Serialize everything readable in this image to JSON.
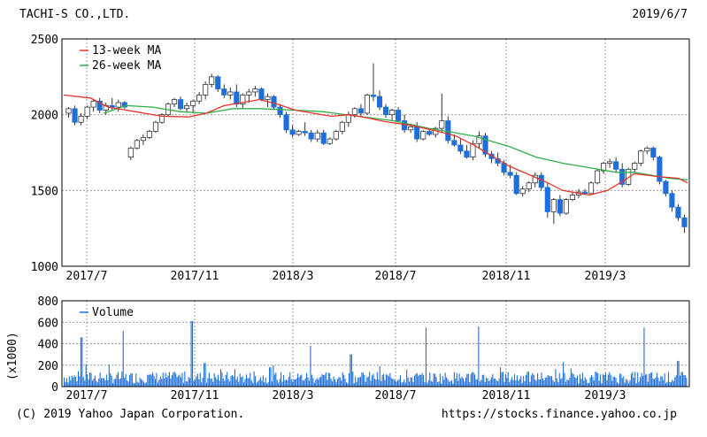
{
  "header": {
    "company": "TACHI-S CO.,LTD.",
    "date": "2019/6/7"
  },
  "footer": {
    "copyright": "(C) 2019 Yahoo Japan Corporation.",
    "url": "https://stocks.finance.yahoo.co.jp"
  },
  "colors": {
    "up": "#ffffff",
    "down": "#1f6fd8",
    "ma13": "#e8332b",
    "ma26": "#2fae4a",
    "volume": "#1f6fd8",
    "grid": "#999999"
  },
  "chart_data": [
    {
      "type": "candlestick",
      "title": "",
      "ylim": [
        1000,
        2500
      ],
      "yticks": [
        1000,
        1500,
        2000,
        2500
      ],
      "xticks": [
        "2017/7",
        "2017/11",
        "2018/3",
        "2018/7",
        "2018/11",
        "2019/3"
      ],
      "legend": [
        "13-week MA",
        "26-week MA"
      ],
      "legend_position": "top-left",
      "grid": true,
      "x_start": "2017-06-05",
      "x_end": "2019-06-07",
      "ma13": [
        [
          0,
          2130
        ],
        [
          6,
          2110
        ],
        [
          10,
          2050
        ],
        [
          16,
          2020
        ],
        [
          22,
          1990
        ],
        [
          28,
          1985
        ],
        [
          32,
          2010
        ],
        [
          36,
          2060
        ],
        [
          40,
          2080
        ],
        [
          44,
          2100
        ],
        [
          48,
          2070
        ],
        [
          52,
          2030
        ],
        [
          56,
          2010
        ],
        [
          60,
          1990
        ],
        [
          64,
          2000
        ],
        [
          68,
          1980
        ],
        [
          72,
          1955
        ],
        [
          78,
          1930
        ],
        [
          84,
          1890
        ],
        [
          88,
          1860
        ],
        [
          92,
          1800
        ],
        [
          96,
          1730
        ],
        [
          100,
          1660
        ],
        [
          104,
          1610
        ],
        [
          108,
          1560
        ],
        [
          112,
          1500
        ],
        [
          116,
          1480
        ],
        [
          118,
          1470
        ],
        [
          122,
          1500
        ],
        [
          126,
          1570
        ],
        [
          128,
          1610
        ],
        [
          134,
          1590
        ],
        [
          138,
          1580
        ],
        [
          140,
          1550
        ]
      ],
      "ma26": [
        [
          9,
          2010
        ],
        [
          14,
          2060
        ],
        [
          20,
          2050
        ],
        [
          26,
          2020
        ],
        [
          32,
          2010
        ],
        [
          38,
          2040
        ],
        [
          44,
          2040
        ],
        [
          52,
          2030
        ],
        [
          58,
          2020
        ],
        [
          66,
          1990
        ],
        [
          74,
          1960
        ],
        [
          82,
          1910
        ],
        [
          86,
          1890
        ],
        [
          92,
          1860
        ],
        [
          100,
          1790
        ],
        [
          106,
          1720
        ],
        [
          112,
          1680
        ],
        [
          118,
          1650
        ],
        [
          124,
          1620
        ],
        [
          128,
          1620
        ],
        [
          132,
          1600
        ],
        [
          136,
          1580
        ],
        [
          140,
          1570
        ]
      ],
      "candles": [
        [
          2010,
          2050,
          1980,
          2040
        ],
        [
          2040,
          2060,
          1930,
          1950
        ],
        [
          1950,
          2010,
          1930,
          1990
        ],
        [
          1990,
          2060,
          1970,
          2050
        ],
        [
          2050,
          2100,
          2020,
          2090
        ],
        [
          2090,
          2110,
          2010,
          2030
        ],
        [
          2030,
          2080,
          2000,
          2060
        ],
        [
          2060,
          2110,
          2030,
          2050
        ],
        [
          2050,
          2100,
          2020,
          2080
        ],
        [
          2080,
          2090,
          2040,
          2050
        ],
        [
          1720,
          1790,
          1700,
          1780
        ],
        [
          1780,
          1840,
          1770,
          1830
        ],
        [
          1830,
          1870,
          1800,
          1850
        ],
        [
          1850,
          1900,
          1840,
          1890
        ],
        [
          1890,
          1960,
          1880,
          1950
        ],
        [
          1950,
          2010,
          1940,
          2000
        ],
        [
          2000,
          2080,
          1990,
          2070
        ],
        [
          2070,
          2110,
          2050,
          2100
        ],
        [
          2100,
          2120,
          2030,
          2040
        ],
        [
          2040,
          2080,
          2020,
          2060
        ],
        [
          2060,
          2100,
          2010,
          2090
        ],
        [
          2090,
          2150,
          2070,
          2130
        ],
        [
          2130,
          2220,
          2100,
          2200
        ],
        [
          2200,
          2270,
          2180,
          2250
        ],
        [
          2250,
          2260,
          2150,
          2170
        ],
        [
          2170,
          2200,
          2110,
          2130
        ],
        [
          2130,
          2180,
          2100,
          2150
        ],
        [
          2150,
          2200,
          2050,
          2070
        ],
        [
          2070,
          2140,
          2040,
          2130
        ],
        [
          2130,
          2170,
          2080,
          2150
        ],
        [
          2150,
          2190,
          2120,
          2170
        ],
        [
          2170,
          2180,
          2090,
          2100
        ],
        [
          2100,
          2140,
          2050,
          2120
        ],
        [
          2120,
          2130,
          2030,
          2050
        ],
        [
          2050,
          2070,
          1980,
          2000
        ],
        [
          2000,
          2020,
          1880,
          1900
        ],
        [
          1900,
          1930,
          1850,
          1870
        ],
        [
          1870,
          1900,
          1860,
          1890
        ],
        [
          1890,
          1950,
          1860,
          1880
        ],
        [
          1880,
          1900,
          1820,
          1840
        ],
        [
          1840,
          1900,
          1820,
          1880
        ],
        [
          1880,
          1900,
          1800,
          1810
        ],
        [
          1810,
          1850,
          1800,
          1840
        ],
        [
          1840,
          1900,
          1830,
          1890
        ],
        [
          1890,
          1960,
          1870,
          1950
        ],
        [
          1950,
          2020,
          1920,
          2000
        ],
        [
          2000,
          2050,
          1980,
          2040
        ],
        [
          2040,
          2070,
          1990,
          2010
        ],
        [
          2010,
          2140,
          2000,
          2130
        ],
        [
          2130,
          2340,
          2090,
          2120
        ],
        [
          2120,
          2160,
          2030,
          2050
        ],
        [
          2050,
          2070,
          1980,
          2000
        ],
        [
          2000,
          2040,
          1960,
          2030
        ],
        [
          2030,
          2050,
          1950,
          1960
        ],
        [
          1960,
          2000,
          1880,
          1900
        ],
        [
          1900,
          1940,
          1880,
          1920
        ],
        [
          1920,
          1950,
          1820,
          1840
        ],
        [
          1840,
          1900,
          1830,
          1890
        ],
        [
          1890,
          1910,
          1860,
          1870
        ],
        [
          1870,
          1920,
          1850,
          1910
        ],
        [
          1910,
          2140,
          1880,
          1960
        ],
        [
          1960,
          1990,
          1810,
          1830
        ],
        [
          1830,
          1870,
          1790,
          1800
        ],
        [
          1800,
          1840,
          1740,
          1760
        ],
        [
          1760,
          1800,
          1710,
          1720
        ],
        [
          1720,
          1830,
          1700,
          1810
        ],
        [
          1810,
          1890,
          1780,
          1860
        ],
        [
          1860,
          1880,
          1720,
          1740
        ],
        [
          1740,
          1760,
          1680,
          1710
        ],
        [
          1710,
          1750,
          1660,
          1680
        ],
        [
          1680,
          1700,
          1600,
          1620
        ],
        [
          1620,
          1670,
          1580,
          1600
        ],
        [
          1600,
          1620,
          1470,
          1480
        ],
        [
          1480,
          1530,
          1460,
          1510
        ],
        [
          1510,
          1560,
          1490,
          1550
        ],
        [
          1550,
          1620,
          1520,
          1600
        ],
        [
          1600,
          1620,
          1500,
          1520
        ],
        [
          1520,
          1550,
          1320,
          1360
        ],
        [
          1360,
          1450,
          1280,
          1440
        ],
        [
          1440,
          1470,
          1330,
          1350
        ],
        [
          1350,
          1450,
          1340,
          1440
        ],
        [
          1440,
          1490,
          1430,
          1470
        ],
        [
          1470,
          1510,
          1450,
          1490
        ],
        [
          1490,
          1510,
          1470,
          1480
        ],
        [
          1480,
          1560,
          1470,
          1550
        ],
        [
          1550,
          1640,
          1540,
          1630
        ],
        [
          1630,
          1690,
          1610,
          1680
        ],
        [
          1680,
          1710,
          1650,
          1690
        ],
        [
          1690,
          1720,
          1620,
          1640
        ],
        [
          1640,
          1680,
          1520,
          1540
        ],
        [
          1540,
          1650,
          1530,
          1640
        ],
        [
          1640,
          1690,
          1620,
          1680
        ],
        [
          1680,
          1770,
          1660,
          1760
        ],
        [
          1760,
          1790,
          1740,
          1780
        ],
        [
          1780,
          1790,
          1700,
          1720
        ],
        [
          1720,
          1730,
          1540,
          1560
        ],
        [
          1560,
          1570,
          1460,
          1480
        ],
        [
          1480,
          1500,
          1360,
          1390
        ],
        [
          1390,
          1410,
          1300,
          1320
        ],
        [
          1320,
          1340,
          1220,
          1260
        ]
      ]
    },
    {
      "type": "bar",
      "title": "",
      "ylabel": "(x1000)",
      "legend": [
        "Volume"
      ],
      "legend_position": "top-left",
      "ylim": [
        0,
        800
      ],
      "yticks": [
        0,
        200,
        400,
        600,
        800
      ],
      "xticks": [
        "2017/7",
        "2017/11",
        "2018/3",
        "2018/7",
        "2018/11",
        "2019/3"
      ],
      "spikes": [
        [
          0.035,
          210
        ],
        [
          0.028,
          460
        ],
        [
          0.095,
          520
        ],
        [
          0.135,
          110
        ],
        [
          0.205,
          610
        ],
        [
          0.225,
          220
        ],
        [
          0.33,
          180
        ],
        [
          0.395,
          380
        ],
        [
          0.46,
          300
        ],
        [
          0.58,
          550
        ],
        [
          0.665,
          560
        ],
        [
          0.7,
          180
        ],
        [
          0.8,
          230
        ],
        [
          0.93,
          550
        ],
        [
          0.985,
          240
        ]
      ]
    }
  ]
}
